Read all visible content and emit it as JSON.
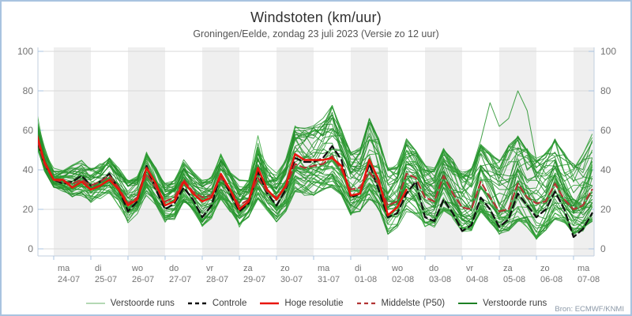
{
  "window": {
    "title": "Windstoten (km/uur)",
    "subtitle": "Groningen/Eelde, zondag 23 juli 2023 (Versie zo 12 uur)",
    "source": "Bron: ECMWF/KNMI"
  },
  "colors": {
    "frame_border": "#a9c3e0",
    "day_band": "#efefef",
    "gridline": "#dadada",
    "axis": "#c2cfdf",
    "tick": "#a9c3e0",
    "axis_label": "#737373",
    "ensemble_green": "#2c9733",
    "ensemble_green_dark": "#1f8a26",
    "ensemble_green_light": "#37a83c",
    "control_black": "#111111",
    "hires_red": "#e8150d",
    "p50_darkred": "#b23434"
  },
  "chart_data": {
    "type": "line",
    "title": "Windstoten (km/uur)",
    "subtitle": "Groningen/Eelde, zondag 23 juli 2023 (Versie zo 12 uur)",
    "ylabel": "",
    "ylim": [
      0,
      100
    ],
    "yticks": [
      0,
      20,
      40,
      60,
      80,
      100
    ],
    "grid": "horizontal, alternating gray day bands",
    "legend_position": "bottom",
    "x_start": "23-07 12:00",
    "step_hours": 6,
    "days": [
      {
        "dow": "ma",
        "date": "24-07"
      },
      {
        "dow": "di",
        "date": "25-07"
      },
      {
        "dow": "wo",
        "date": "26-07"
      },
      {
        "dow": "do",
        "date": "27-07"
      },
      {
        "dow": "vr",
        "date": "28-07"
      },
      {
        "dow": "za",
        "date": "29-07"
      },
      {
        "dow": "zo",
        "date": "30-07"
      },
      {
        "dow": "ma",
        "date": "31-07"
      },
      {
        "dow": "di",
        "date": "01-08"
      },
      {
        "dow": "wo",
        "date": "02-08"
      },
      {
        "dow": "do",
        "date": "03-08"
      },
      {
        "dow": "vr",
        "date": "04-08"
      },
      {
        "dow": "za",
        "date": "05-08"
      },
      {
        "dow": "zo",
        "date": "06-08"
      },
      {
        "dow": "ma",
        "date": "07-08"
      }
    ],
    "series": [
      {
        "name": "Verstoorde runs",
        "type": "ensemble",
        "count": 50,
        "color": "#2c9733",
        "min": [
          55,
          40,
          32,
          30,
          27,
          28,
          24,
          26,
          28,
          22,
          14,
          18,
          28,
          22,
          14,
          16,
          24,
          20,
          12,
          16,
          26,
          20,
          12,
          16,
          25,
          20,
          14,
          20,
          30,
          28,
          28,
          30,
          32,
          28,
          18,
          20,
          25,
          20,
          8,
          12,
          20,
          18,
          12,
          12,
          20,
          16,
          10,
          10,
          18,
          14,
          8,
          10,
          15,
          12,
          5,
          10,
          16,
          14,
          8,
          10,
          15
        ],
        "max": [
          74,
          52,
          40,
          40,
          42,
          44,
          40,
          42,
          46,
          40,
          34,
          36,
          48,
          40,
          32,
          34,
          44,
          38,
          34,
          36,
          48,
          40,
          34,
          36,
          58,
          42,
          38,
          45,
          62,
          60,
          62,
          65,
          72,
          60,
          48,
          50,
          65,
          55,
          40,
          42,
          55,
          50,
          42,
          40,
          50,
          44,
          38,
          40,
          52,
          48,
          45,
          52,
          56,
          50,
          45,
          48,
          55,
          48,
          42,
          48,
          57
        ],
        "outlier": [
          57,
          42,
          34,
          33,
          32,
          34,
          31,
          33,
          36,
          30,
          22,
          25,
          37,
          30,
          23,
          25,
          34,
          28,
          25,
          26,
          35,
          29,
          21,
          24,
          35,
          28,
          25,
          30,
          42,
          40,
          41,
          42,
          46,
          39,
          29,
          30,
          38,
          32,
          21,
          23,
          37,
          35,
          25,
          23,
          37,
          30,
          28,
          40,
          55,
          74,
          62,
          66,
          80,
          70,
          45,
          38,
          42,
          30,
          22,
          28,
          40
        ]
      },
      {
        "name": "Controle",
        "type": "line",
        "dash": true,
        "color": "#111111",
        "values": [
          58,
          43,
          35,
          33,
          34,
          37,
          32,
          34,
          38,
          30,
          19,
          24,
          42,
          30,
          20,
          23,
          31,
          25,
          16,
          22,
          38,
          28,
          19,
          23,
          39,
          28,
          22,
          30,
          46,
          44,
          44,
          46,
          52,
          45,
          26,
          28,
          43,
          30,
          16,
          18,
          28,
          34,
          16,
          14,
          25,
          18,
          9,
          12,
          26,
          20,
          11,
          15,
          28,
          22,
          16,
          20,
          29,
          20,
          6,
          10,
          18
        ]
      },
      {
        "name": "Middelste (P50)",
        "type": "line",
        "dash": true,
        "color": "#b23434",
        "values": [
          59,
          43,
          35,
          34,
          33,
          35,
          32,
          34,
          37,
          31,
          23,
          26,
          38,
          31,
          24,
          26,
          35,
          29,
          26,
          27,
          36,
          30,
          22,
          25,
          36,
          29,
          26,
          31,
          43,
          41,
          42,
          43,
          47,
          40,
          30,
          31,
          39,
          33,
          22,
          24,
          38,
          36,
          26,
          24,
          37,
          28,
          21,
          20,
          34,
          26,
          19,
          20,
          33,
          26,
          23,
          24,
          33,
          25,
          20,
          22,
          30
        ]
      },
      {
        "name": "Hoge resolutie",
        "type": "line",
        "dash": false,
        "color": "#e8150d",
        "values": [
          61,
          44,
          35,
          35,
          31,
          34,
          30,
          32,
          35,
          30,
          22,
          25,
          41,
          33,
          22,
          24,
          34,
          28,
          24,
          26,
          38,
          30,
          20,
          24,
          41,
          30,
          25,
          32,
          48,
          45,
          45,
          45,
          46,
          42,
          27,
          28,
          45,
          35,
          17,
          21,
          30
        ]
      }
    ],
    "legend": [
      {
        "label": "Verstoorde runs",
        "color": "#a9d3a9",
        "dash": "none",
        "width": 1.8
      },
      {
        "label": "Controle",
        "color": "#111111",
        "dash": "5 4",
        "width": 2.4
      },
      {
        "label": "Hoge resolutie",
        "color": "#e8150d",
        "dash": "none",
        "width": 2.4
      },
      {
        "label": "Middelste (P50)",
        "color": "#b23434",
        "dash": "5 4",
        "width": 2.2
      },
      {
        "label": "Verstoorde runs",
        "color": "#1d8124",
        "dash": "none",
        "width": 2.0
      }
    ],
    "source": "Bron: ECMWF/KNMI"
  }
}
